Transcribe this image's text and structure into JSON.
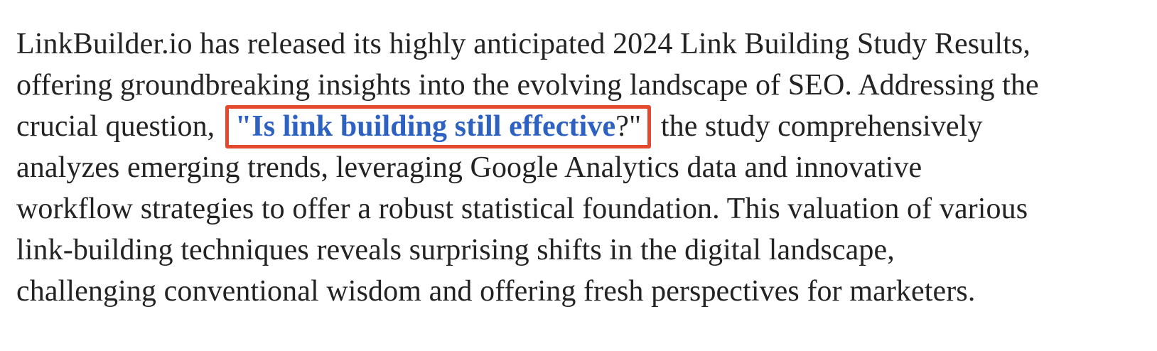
{
  "page": {
    "background": "#ffffff",
    "text_color": "#232323",
    "accent_blue": "#2d62c3",
    "annotation_red": "#e4492f"
  },
  "paragraph": {
    "lines": [
      [
        {
          "text": "LinkBuilder.io has released its highly anticipated 2024 Link Building Study Results,"
        }
      ],
      [
        {
          "text": "offering groundbreaking insights into the evolving landscape of SEO. Addressing the"
        }
      ],
      [
        {
          "text": "crucial question, "
        },
        {
          "box": [
            {
              "text": "\"Is link building still effective",
              "style": "link"
            },
            {
              "text": "?\""
            }
          ]
        },
        {
          "text": " the study comprehensively"
        }
      ],
      [
        {
          "text": "analyzes emerging trends, leveraging Google Analytics data and innovative"
        }
      ],
      [
        {
          "text": "workflow strategies to offer a robust statistical foundation. This valuation of various"
        }
      ],
      [
        {
          "text": "link-building techniques reveals surprising shifts in the digital landscape,"
        }
      ],
      [
        {
          "text": "challenging conventional wisdom and offering fresh perspectives for marketers."
        }
      ]
    ]
  }
}
